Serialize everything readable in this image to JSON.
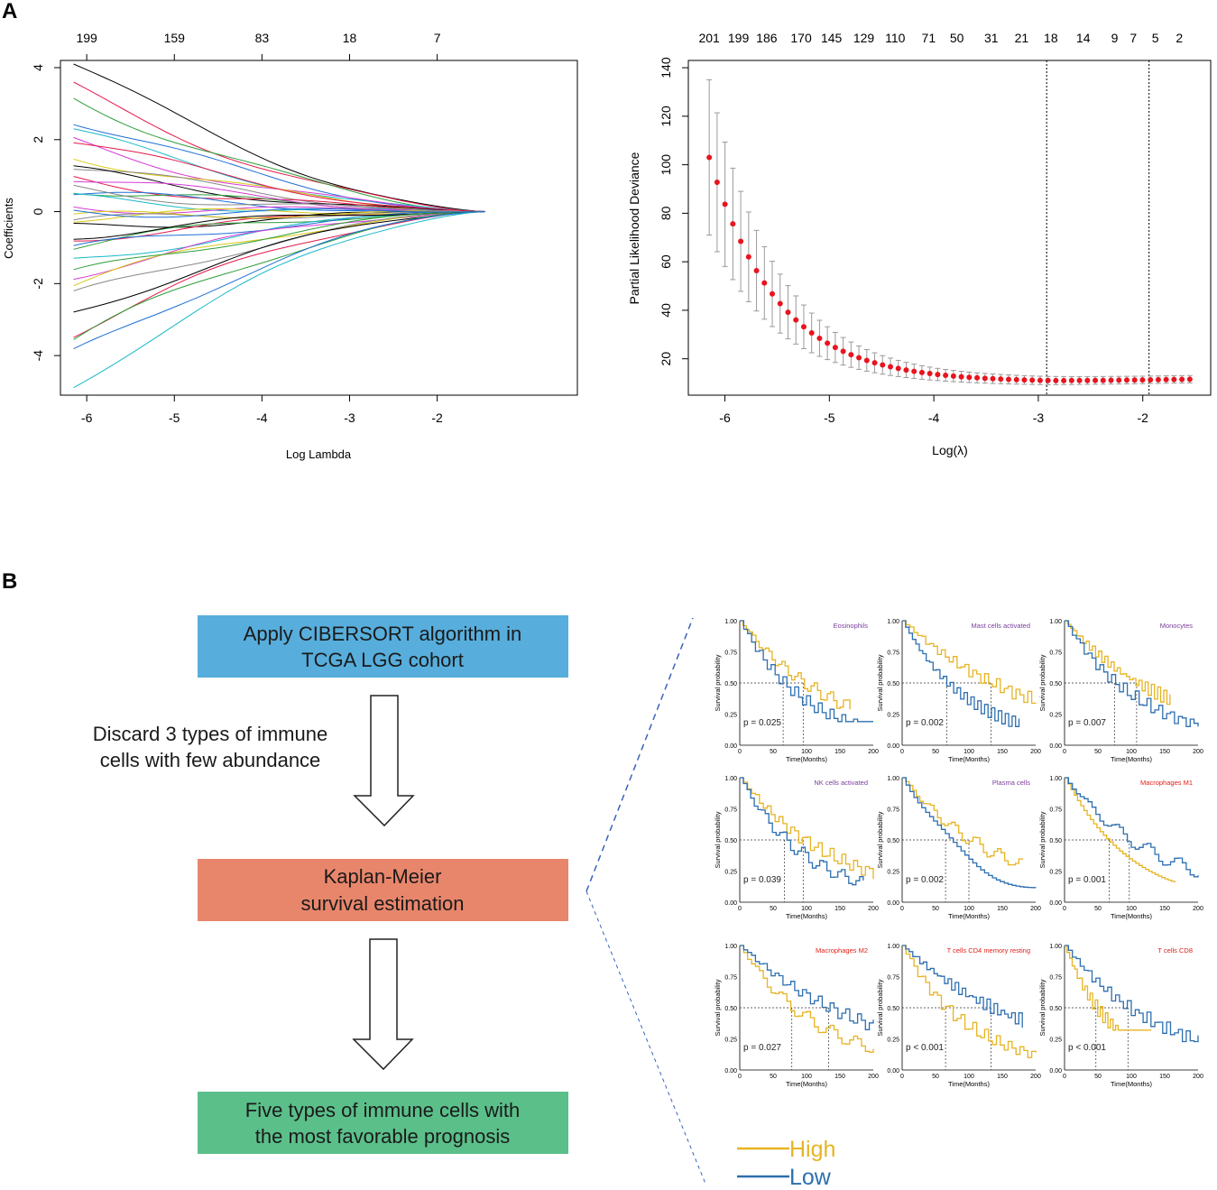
{
  "panel_labels": {
    "a": "A",
    "b": "B"
  },
  "chart_data": [
    {
      "type": "line",
      "id": "lasso_paths",
      "title": "",
      "xlabel": "Log Lambda",
      "ylabel": "Coefficients",
      "xlim": [
        -6.3,
        -0.4
      ],
      "ylim": [
        -5.1,
        4.2
      ],
      "x_ticks": [
        "-6",
        "-5",
        "-4",
        "-3",
        "-2"
      ],
      "x_tick_values": [
        -6,
        -5,
        -4,
        -3,
        -2
      ],
      "y_ticks": [
        "-4",
        "-2",
        "0",
        "2",
        "4"
      ],
      "y_tick_values": [
        -4,
        -2,
        0,
        2,
        4
      ],
      "top_ticks": [
        "199",
        "159",
        "83",
        "18",
        "7"
      ],
      "top_tick_values": [
        -6,
        -5,
        -4,
        -3,
        -2
      ],
      "x_start": -6.15,
      "x_end": -1.45,
      "series_colors": [
        "#000000",
        "#e41a4a",
        "#2e9e3a",
        "#1f6fd6",
        "#19b8c8",
        "#d63ad6",
        "#d8c814",
        "#888888"
      ],
      "series": [
        {
          "name": "s1",
          "start": 4.1,
          "end": 0
        },
        {
          "name": "s2",
          "start": 3.4,
          "end": 0
        },
        {
          "name": "s3",
          "start": 3.2,
          "end": 0
        },
        {
          "name": "s4",
          "start": 2.6,
          "end": 0
        },
        {
          "name": "s5",
          "start": 2.2,
          "end": 0
        },
        {
          "name": "s6",
          "start": 1.9,
          "end": 0
        },
        {
          "name": "s7",
          "start": 1.6,
          "end": 0
        },
        {
          "name": "s8",
          "start": 1.3,
          "end": 0
        },
        {
          "name": "s9",
          "start": 1.1,
          "end": 0
        },
        {
          "name": "s10",
          "start": 0.9,
          "end": 0
        },
        {
          "name": "s11",
          "start": 0.7,
          "end": 0
        },
        {
          "name": "s12",
          "start": 0.5,
          "end": 0
        },
        {
          "name": "s13",
          "start": 0.3,
          "end": 0
        },
        {
          "name": "s14",
          "start": 0.15,
          "end": 0
        },
        {
          "name": "s15",
          "start": -0.1,
          "end": 0
        },
        {
          "name": "s16",
          "start": -0.3,
          "end": 0
        },
        {
          "name": "s17",
          "start": -0.5,
          "end": 0
        },
        {
          "name": "s18",
          "start": -0.7,
          "end": 0
        },
        {
          "name": "s19",
          "start": -0.9,
          "end": 0
        },
        {
          "name": "s20",
          "start": -1.1,
          "end": 0
        },
        {
          "name": "s21",
          "start": -1.4,
          "end": 0
        },
        {
          "name": "s22",
          "start": -1.7,
          "end": 0
        },
        {
          "name": "s23",
          "start": -2.0,
          "end": 0
        },
        {
          "name": "s24",
          "start": -2.4,
          "end": 0
        },
        {
          "name": "s25",
          "start": -2.8,
          "end": 0
        },
        {
          "name": "s26",
          "start": -3.3,
          "end": 0
        },
        {
          "name": "s27",
          "start": -3.6,
          "end": 0
        },
        {
          "name": "s28",
          "start": -4.0,
          "end": 0
        },
        {
          "name": "s29",
          "start": -4.8,
          "end": 0
        },
        {
          "name": "s30",
          "start": 1.0,
          "end": 0
        },
        {
          "name": "s31",
          "start": -0.2,
          "end": 0
        },
        {
          "name": "s32",
          "start": 0.6,
          "end": 0
        },
        {
          "name": "s33",
          "start": -0.6,
          "end": 0
        },
        {
          "name": "s34",
          "start": 2.0,
          "end": 0
        },
        {
          "name": "s35",
          "start": -1.8,
          "end": 0
        },
        {
          "name": "s36",
          "start": 0.0,
          "end": 0
        }
      ]
    },
    {
      "type": "scatter",
      "id": "cv_deviance",
      "title": "",
      "xlabel": "Log(λ)",
      "ylabel": "Partial Likelihood Deviance",
      "xlim": [
        -6.35,
        -1.35
      ],
      "ylim": [
        5,
        143
      ],
      "x_ticks": [
        "-6",
        "-5",
        "-4",
        "-3",
        "-2"
      ],
      "x_tick_values": [
        -6,
        -5,
        -4,
        -3,
        -2
      ],
      "y_ticks": [
        "20",
        "40",
        "60",
        "80",
        "100",
        "120",
        "140"
      ],
      "y_tick_values": [
        20,
        40,
        60,
        80,
        100,
        120,
        140
      ],
      "top_ticks": [
        "201",
        "199",
        "186",
        "170",
        "145",
        "129",
        "110",
        "71",
        "50",
        "31",
        "21",
        "18",
        "14",
        "9",
        "7",
        "5",
        "2"
      ],
      "top_tick_values": [
        -6.15,
        -5.87,
        -5.6,
        -5.27,
        -4.98,
        -4.67,
        -4.37,
        -4.05,
        -3.78,
        -3.45,
        -3.16,
        -2.88,
        -2.57,
        -2.27,
        -2.09,
        -1.88,
        -1.65
      ],
      "vlines": [
        -2.92,
        -1.94
      ],
      "x_start": -6.15,
      "x_end": -1.55,
      "n_points": 62,
      "mean_start": 103,
      "mean_min": 10.4,
      "decay": 1.55,
      "tail_end": 11.5,
      "se_start": 32,
      "se_min": 1.5,
      "point_color": "#e8141e",
      "errorbar_color": "#9a9a9a"
    },
    {
      "type": "line",
      "id": "km_grid",
      "xlabel": "Time(Months)",
      "ylabel": "Survival probability",
      "x_ticks": [
        "0",
        "50",
        "100",
        "150",
        "200"
      ],
      "x_tick_values": [
        0,
        50,
        100,
        150,
        200
      ],
      "y_ticks": [
        "0.00",
        "0.25",
        "0.50",
        "0.75",
        "1.00"
      ],
      "y_tick_values": [
        0,
        0.25,
        0.5,
        0.75,
        1.0
      ],
      "colors": {
        "High": "#e6b422",
        "Low": "#2c6fb0"
      },
      "panels": [
        {
          "title": "Eosinophils",
          "title_color": "#7a3d9c",
          "p": "p = 0.025",
          "median_high": 95,
          "median_low": 65,
          "high_end": [
            165,
            0.1
          ],
          "low_end": [
            200,
            0.19
          ]
        },
        {
          "title": "Mast cells activated",
          "title_color": "#7a3d9c",
          "p": "p = 0.002",
          "median_high": 133,
          "median_low": 67,
          "high_end": [
            200,
            0.13
          ],
          "low_end": [
            175,
            0.15
          ]
        },
        {
          "title": "Monocytes",
          "title_color": "#7a3d9c",
          "p": "p = 0.007",
          "median_high": 108,
          "median_low": 75,
          "high_end": [
            158,
            0.0
          ],
          "low_end": [
            200,
            0.15
          ]
        },
        {
          "title": "NK cells activated",
          "title_color": "#7a3d9c",
          "p": "p = 0.039",
          "median_high": 95,
          "median_low": 67,
          "high_end": [
            200,
            0.15
          ],
          "low_end": [
            185,
            0.1
          ]
        },
        {
          "title": "Plasma cells",
          "title_color": "#7a3d9c",
          "p": "p = 0.002",
          "median_high": 100,
          "median_low": 65,
          "high_end": [
            180,
            0.3
          ],
          "low_end": [
            200,
            0.06
          ]
        },
        {
          "title": "Macrophages M1",
          "title_color": "#e0201a",
          "p": "p = 0.001",
          "median_high": 67,
          "median_low": 97,
          "high_end": [
            165,
            0.07
          ],
          "low_end": [
            200,
            0.15
          ]
        },
        {
          "title": "Macrophages M2",
          "title_color": "#e0201a",
          "p": "p = 0.027",
          "median_high": 78,
          "median_low": 133,
          "high_end": [
            200,
            0.12
          ],
          "low_end": [
            200,
            0.12
          ]
        },
        {
          "title": "T cells CD4 memory resting",
          "title_color": "#e0201a",
          "p": "p < 0.001",
          "median_high": 65,
          "median_low": 133,
          "high_end": [
            200,
            0.07
          ],
          "low_end": [
            180,
            0.15
          ]
        },
        {
          "title": "T cells CD8",
          "title_color": "#e0201a",
          "p": "p < 0.001",
          "median_high": 47,
          "median_low": 95,
          "high_end": [
            130,
            0.32
          ],
          "low_end": [
            200,
            0.13
          ]
        }
      ]
    }
  ],
  "flow": {
    "box1": {
      "line1": "Apply CIBERSORT algorithm in",
      "line2": "TCGA LGG cohort",
      "color": "#57aedc"
    },
    "side_note": {
      "line1": "Discard 3 types of immune",
      "line2": "cells with few abundance"
    },
    "box2": {
      "line1": "Kaplan-Meier",
      "line2": "survival estimation",
      "color": "#e8866c"
    },
    "box3": {
      "line1": "Five types of immune cells with",
      "line2": "the most favorable prognosis",
      "color": "#5bbf8a"
    }
  },
  "legend": {
    "high": "High",
    "low": "Low"
  }
}
